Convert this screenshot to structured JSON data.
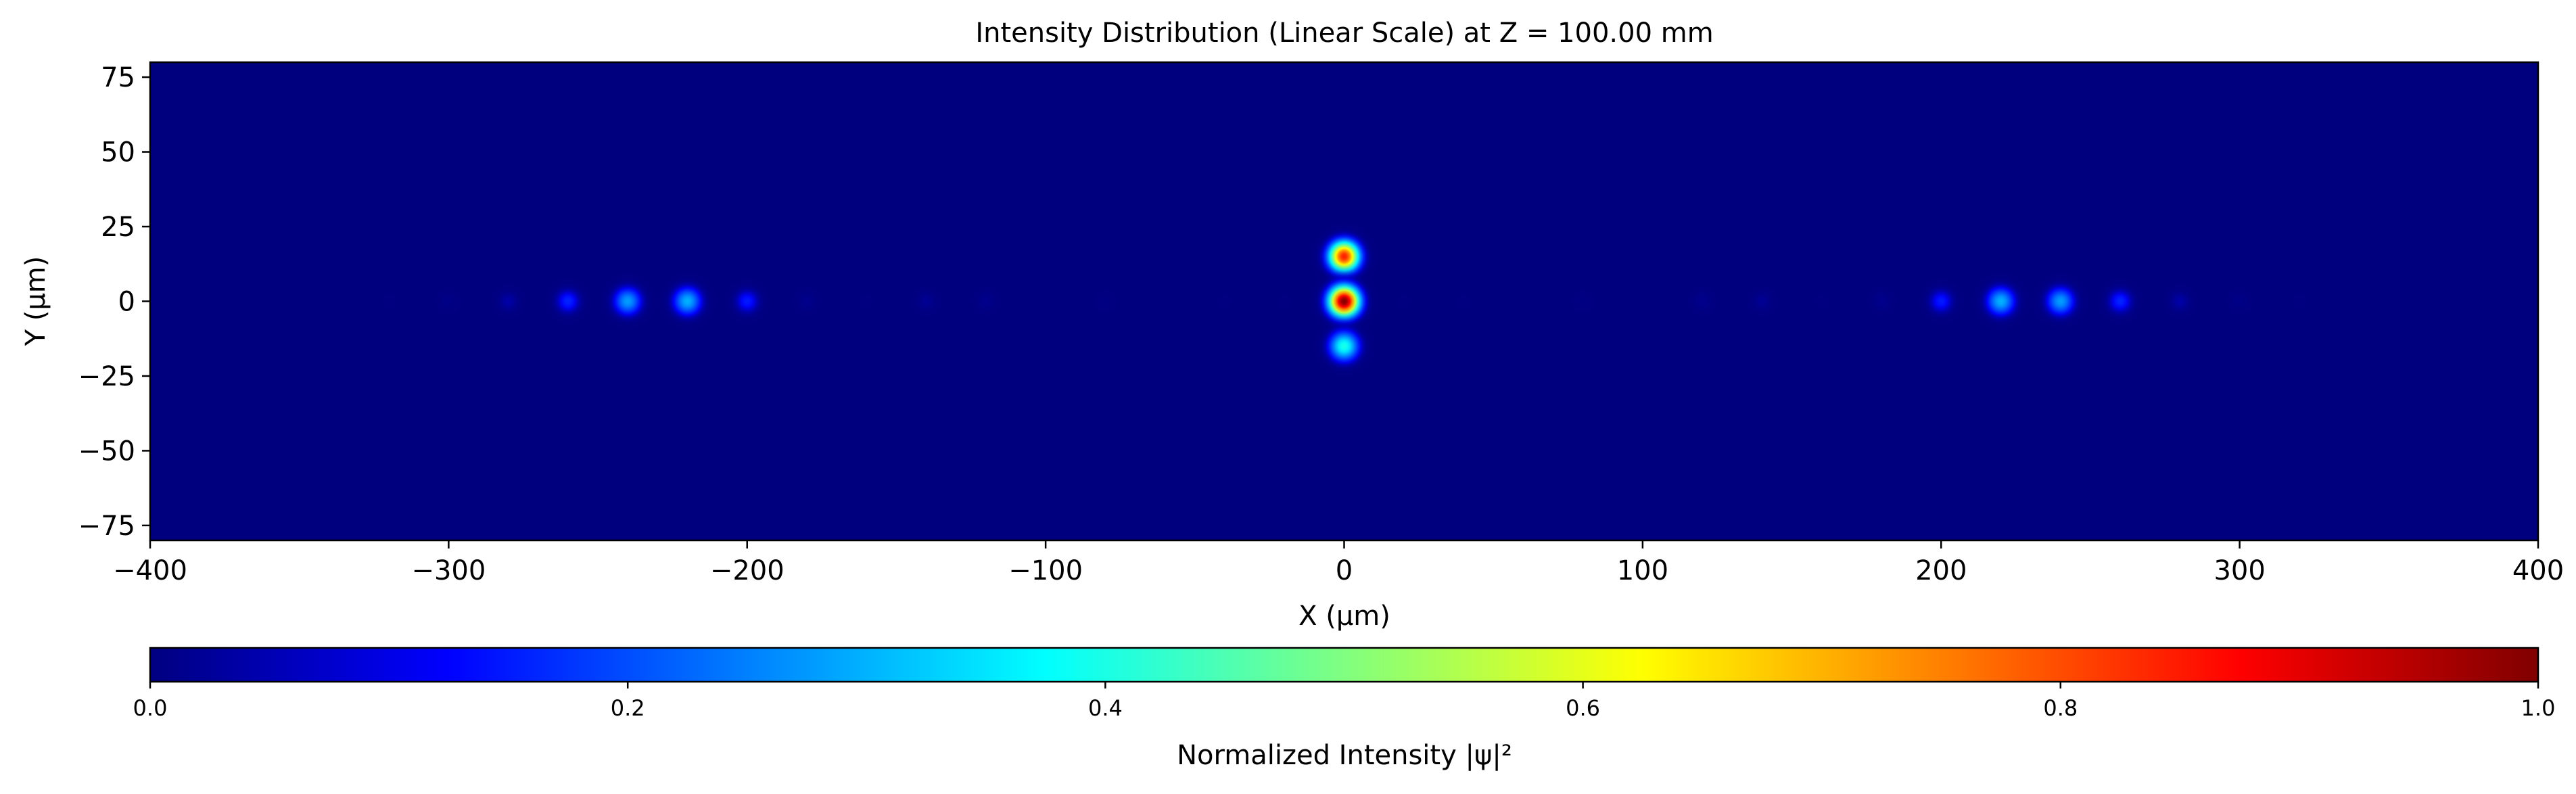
{
  "chart_data": {
    "type": "heatmap",
    "title": "Intensity Distribution (Linear Scale) at Z = 100.00 mm",
    "xlabel": "X (μm)",
    "ylabel": "Y (μm)",
    "xlim": [
      -400,
      400
    ],
    "ylim": [
      -80,
      80
    ],
    "x_ticks": [
      -400,
      -300,
      -200,
      -100,
      0,
      100,
      200,
      300,
      400
    ],
    "x_tick_labels": [
      "−400",
      "−300",
      "−200",
      "−100",
      "0",
      "100",
      "200",
      "300",
      "400"
    ],
    "y_ticks": [
      75,
      50,
      25,
      0,
      -25,
      -50,
      -75
    ],
    "y_tick_labels": [
      "75",
      "50",
      "25",
      "0",
      "−25",
      "−50",
      "−75"
    ],
    "colormap": "jet",
    "colorbar": {
      "label": "Normalized Intensity |ψ|²",
      "range": [
        0.0,
        1.0
      ],
      "ticks": [
        0.0,
        0.2,
        0.4,
        0.6,
        0.8,
        1.0
      ],
      "tick_labels": [
        "0.0",
        "0.2",
        "0.4",
        "0.6",
        "0.8",
        "1.0"
      ]
    },
    "spots": [
      {
        "x": 0,
        "y": 15,
        "intensity": 0.85
      },
      {
        "x": 0,
        "y": 0,
        "intensity": 1.0
      },
      {
        "x": 0,
        "y": -15,
        "intensity": 0.4
      },
      {
        "x": -320,
        "y": 0,
        "intensity": 0.01
      },
      {
        "x": -300,
        "y": 0,
        "intensity": 0.03
      },
      {
        "x": -280,
        "y": 0,
        "intensity": 0.07
      },
      {
        "x": -260,
        "y": 0,
        "intensity": 0.16
      },
      {
        "x": -240,
        "y": 0,
        "intensity": 0.28
      },
      {
        "x": -220,
        "y": 0,
        "intensity": 0.3
      },
      {
        "x": -200,
        "y": 0,
        "intensity": 0.15
      },
      {
        "x": -180,
        "y": 0,
        "intensity": 0.04
      },
      {
        "x": -160,
        "y": 0,
        "intensity": 0.01
      },
      {
        "x": -140,
        "y": 0,
        "intensity": 0.05
      },
      {
        "x": -120,
        "y": 0,
        "intensity": 0.04
      },
      {
        "x": -80,
        "y": 0,
        "intensity": 0.02
      },
      {
        "x": -40,
        "y": 0,
        "intensity": 0.01
      },
      {
        "x": -20,
        "y": 0,
        "intensity": 0.01
      },
      {
        "x": 20,
        "y": 0,
        "intensity": 0.01
      },
      {
        "x": 40,
        "y": 0,
        "intensity": 0.01
      },
      {
        "x": 80,
        "y": 0,
        "intensity": 0.02
      },
      {
        "x": 120,
        "y": 0,
        "intensity": 0.04
      },
      {
        "x": 140,
        "y": 0,
        "intensity": 0.05
      },
      {
        "x": 160,
        "y": 0,
        "intensity": 0.01
      },
      {
        "x": 180,
        "y": 0,
        "intensity": 0.04
      },
      {
        "x": 200,
        "y": 0,
        "intensity": 0.15
      },
      {
        "x": 220,
        "y": 0,
        "intensity": 0.3
      },
      {
        "x": 240,
        "y": 0,
        "intensity": 0.28
      },
      {
        "x": 260,
        "y": 0,
        "intensity": 0.16
      },
      {
        "x": 280,
        "y": 0,
        "intensity": 0.07
      },
      {
        "x": 300,
        "y": 0,
        "intensity": 0.03
      },
      {
        "x": 320,
        "y": 0,
        "intensity": 0.01
      }
    ]
  },
  "colors": {
    "background": "#00007f",
    "axis": "#000000"
  }
}
